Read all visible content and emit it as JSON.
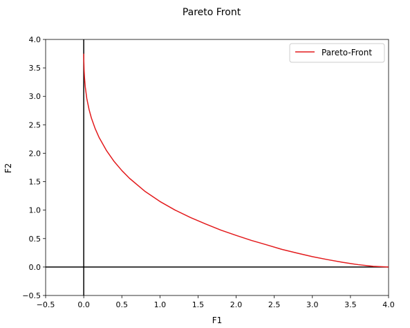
{
  "chart_data": {
    "type": "line",
    "title": "Pareto Front",
    "xlabel": "F1",
    "ylabel": "F2",
    "xlim": [
      -0.5,
      4.0
    ],
    "ylim": [
      -0.5,
      4.0
    ],
    "xticks": [
      -0.5,
      0.0,
      0.5,
      1.0,
      1.5,
      2.0,
      2.5,
      3.0,
      3.5,
      4.0
    ],
    "yticks": [
      -0.5,
      0.0,
      0.5,
      1.0,
      1.5,
      2.0,
      2.5,
      3.0,
      3.5,
      4.0
    ],
    "xtick_labels": [
      "−0.5",
      "0.0",
      "0.5",
      "1.0",
      "1.5",
      "2.0",
      "2.5",
      "3.0",
      "3.5",
      "4.0"
    ],
    "ytick_labels": [
      "−0.5",
      "0.0",
      "0.5",
      "1.0",
      "1.5",
      "2.0",
      "2.5",
      "3.0",
      "3.5",
      "4.0"
    ],
    "grid": false,
    "legend_position": "top-right",
    "reference_lines": [
      {
        "orientation": "vertical",
        "value": 0.0,
        "color": "#000000"
      },
      {
        "orientation": "horizontal",
        "value": 0.0,
        "color": "#000000"
      }
    ],
    "series": [
      {
        "name": "Pareto-Front",
        "color": "#e31a1c",
        "x": [
          0.0,
          0.001,
          0.005,
          0.01,
          0.02,
          0.04,
          0.07,
          0.1,
          0.15,
          0.2,
          0.3,
          0.4,
          0.5,
          0.6,
          0.8,
          1.0,
          1.2,
          1.4,
          1.6,
          1.8,
          2.0,
          2.2,
          2.4,
          2.6,
          2.8,
          3.0,
          3.2,
          3.4,
          3.6,
          3.8,
          4.0
        ],
        "y": [
          3.75,
          3.637,
          3.459,
          3.332,
          3.166,
          2.963,
          2.768,
          2.621,
          2.433,
          2.281,
          2.044,
          1.853,
          1.696,
          1.56,
          1.334,
          1.152,
          1.0,
          0.87,
          0.757,
          0.649,
          0.556,
          0.468,
          0.39,
          0.31,
          0.245,
          0.183,
          0.13,
          0.082,
          0.042,
          0.012,
          0.0
        ]
      }
    ]
  }
}
